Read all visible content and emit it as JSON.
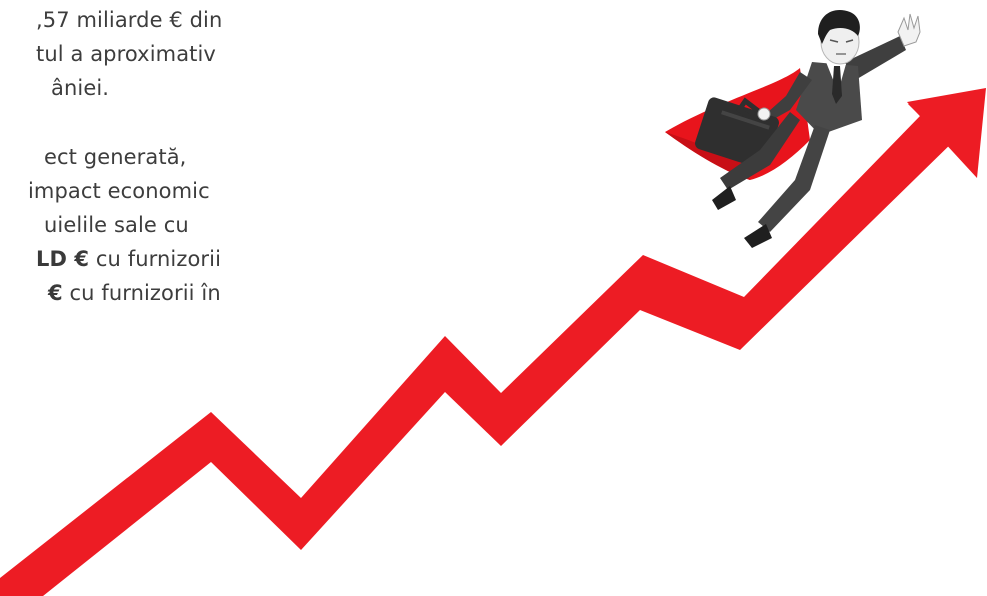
{
  "paragraph1": {
    "lines": [
      ",57 miliarde € din",
      "tul a aproximativ",
      "âniei."
    ]
  },
  "paragraph2": {
    "line1": "ect generată,",
    "line2": "impact economic",
    "line3": "uielile sale cu",
    "line4_bold": "LD €",
    "line4_rest": " cu furnizorii",
    "line5_bold": "€",
    "line5_rest": " cu furnizorii în"
  },
  "colors": {
    "arrow": "#ed1c24",
    "cape": "#e8141c",
    "suit": "#4a4a4a",
    "text": "#3d3d3d"
  }
}
